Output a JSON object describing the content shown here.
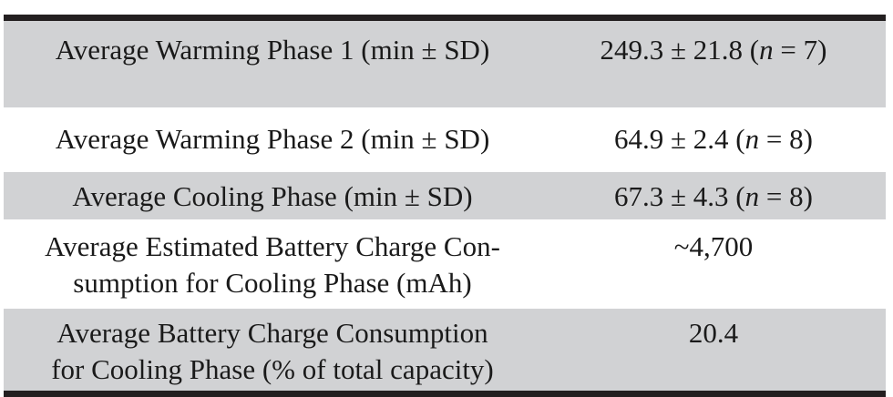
{
  "table": {
    "rows": [
      {
        "label": "Average Warming Phase 1 (min ± SD)",
        "value_main": "249.3 ± 21.8 (",
        "n_symbol": "n",
        "value_tail": " = 7)"
      },
      {
        "label": "Average Warming Phase 2 (min ± SD)",
        "value_main": "64.9 ± 2.4 (",
        "n_symbol": "n",
        "value_tail": " = 8)"
      },
      {
        "label": "Average Cooling Phase (min ± SD)",
        "value_main": "67.3 ± 4.3 (",
        "n_symbol": "n",
        "value_tail": " = 8)"
      },
      {
        "label": "Average Estimated Battery Charge Con-\nsumption for Cooling Phase (mAh)",
        "value_main": "~4,700"
      },
      {
        "label": "Average Battery Charge Consumption\nfor Cooling Phase (% of total capacity)",
        "value_main": "20.4"
      }
    ]
  }
}
